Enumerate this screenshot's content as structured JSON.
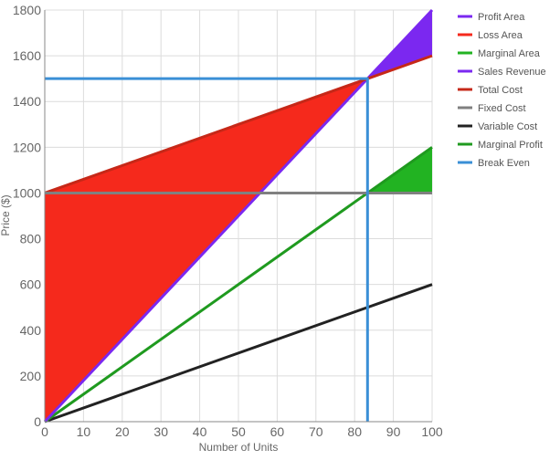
{
  "chart_data": {
    "type": "area",
    "xlabel": "Number of Units",
    "ylabel": "Price ($)",
    "xlim": [
      0,
      100
    ],
    "ylim": [
      0,
      1800
    ],
    "x_ticks": [
      "0",
      "10",
      "20",
      "30",
      "40",
      "50",
      "60",
      "70",
      "80",
      "90",
      "100"
    ],
    "y_ticks": [
      "0",
      "200",
      "400",
      "600",
      "800",
      "1000",
      "1200",
      "1400",
      "1600",
      "1800"
    ],
    "grid": true,
    "legend_position": "right",
    "break_even": {
      "units": 83.33,
      "price": 1500
    },
    "marginal_break_even": {
      "units": 83.33,
      "price": 1000
    },
    "areas": [
      {
        "name": "Profit Area",
        "color": "#7b28f0",
        "points": [
          [
            83.33,
            1500
          ],
          [
            100,
            1800
          ],
          [
            100,
            1600
          ]
        ]
      },
      {
        "name": "Loss Area",
        "color": "#f5291c",
        "points": [
          [
            0,
            0
          ],
          [
            0,
            1000
          ],
          [
            83.33,
            1500
          ]
        ]
      },
      {
        "name": "Marginal Area",
        "color": "#22b322",
        "points": [
          [
            83.33,
            1000
          ],
          [
            100,
            1200
          ],
          [
            100,
            1000
          ]
        ]
      }
    ],
    "series": [
      {
        "name": "Sales Revenue",
        "color": "#7b28f0",
        "x": [
          0,
          100
        ],
        "y": [
          0,
          1800
        ]
      },
      {
        "name": "Total Cost",
        "color": "#c62818",
        "x": [
          0,
          100
        ],
        "y": [
          1000,
          1600
        ]
      },
      {
        "name": "Fixed Cost",
        "color": "#808080",
        "x": [
          0,
          100
        ],
        "y": [
          1000,
          1000
        ]
      },
      {
        "name": "Variable Cost",
        "color": "#222222",
        "x": [
          0,
          100
        ],
        "y": [
          0,
          600
        ]
      },
      {
        "name": "Marginal Profit",
        "color": "#1f9a1f",
        "x": [
          0,
          100
        ],
        "y": [
          0,
          1200
        ]
      },
      {
        "name": "Break Even",
        "color": "#3a8fd6",
        "x": [
          0,
          83.33,
          83.33
        ],
        "y": [
          1500,
          1500,
          0
        ]
      }
    ],
    "legend": [
      {
        "label": "Profit Area",
        "color": "#7b28f0"
      },
      {
        "label": "Loss Area",
        "color": "#f5291c"
      },
      {
        "label": "Marginal Area",
        "color": "#22b322"
      },
      {
        "label": "Sales Revenue",
        "color": "#7b28f0"
      },
      {
        "label": "Total Cost",
        "color": "#c62818"
      },
      {
        "label": "Fixed Cost",
        "color": "#808080"
      },
      {
        "label": "Variable Cost",
        "color": "#222222"
      },
      {
        "label": "Marginal Profit",
        "color": "#1f9a1f"
      },
      {
        "label": "Break Even",
        "color": "#3a8fd6"
      }
    ]
  }
}
